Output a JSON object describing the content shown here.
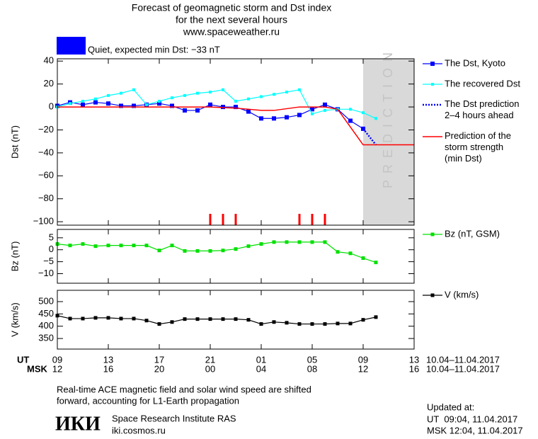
{
  "header": {
    "title_lines": [
      "Forecast of geomagnetic storm and Dst index",
      "for the next several hours",
      "www.spaceweather.ru"
    ],
    "status": "Quiet, expected min Dst: −33 nT",
    "status_color": "#0000ff"
  },
  "x_axis": {
    "xlim": [
      0,
      28
    ],
    "xticks": [
      {
        "value": 0,
        "label": "09"
      },
      {
        "value": 4,
        "label": "13"
      },
      {
        "value": 8,
        "label": "17"
      },
      {
        "value": 12,
        "label": "21"
      },
      {
        "value": 16,
        "label": "01"
      },
      {
        "value": 20,
        "label": "05"
      },
      {
        "value": 24,
        "label": "09"
      },
      {
        "value": 28,
        "label": "13"
      }
    ],
    "msk_ticks": [
      {
        "value": 0,
        "label": "12"
      },
      {
        "value": 4,
        "label": "16"
      },
      {
        "value": 8,
        "label": "20"
      },
      {
        "value": 12,
        "label": "00"
      },
      {
        "value": 16,
        "label": "04"
      },
      {
        "value": 20,
        "label": "08"
      },
      {
        "value": 24,
        "label": "12"
      },
      {
        "value": 28,
        "label": "16"
      }
    ],
    "ut_label": "UT",
    "msk_label": "MSK",
    "date_range": "10.04–11.04.2017"
  },
  "chart_data": [
    {
      "type": "line",
      "ylabel": "Dst (nT)",
      "ylim": [
        -103,
        42
      ],
      "yticks": [
        40,
        20,
        0,
        {
          "value": -20,
          "label": "−20"
        },
        {
          "value": -40,
          "label": "−40"
        },
        {
          "value": -60,
          "label": "−60"
        },
        {
          "value": -80,
          "label": "−80"
        },
        {
          "value": -100,
          "label": "−100"
        }
      ],
      "prediction_start": 24,
      "prediction_label": "PREDICTION",
      "prediction_color": "#d9d9d9",
      "markers_x": [
        12,
        13,
        14,
        19,
        20,
        21
      ],
      "markers_color": "#ff0000",
      "series": [
        {
          "name": "The Dst, Kyoto",
          "color": "#0000ff",
          "marker": "square",
          "marker_size": 6,
          "x": [
            0,
            1,
            2,
            3,
            4,
            5,
            6,
            7,
            8,
            9,
            10,
            11,
            12,
            13,
            14,
            15,
            16,
            17,
            18,
            19,
            20,
            21,
            22,
            23,
            24
          ],
          "values": [
            1,
            4,
            2,
            4,
            3,
            1,
            1,
            2,
            3,
            1,
            -3,
            -3,
            2,
            0,
            0,
            -4,
            -10,
            -10,
            -9,
            -7,
            -2,
            2,
            -2,
            -12,
            -19
          ]
        },
        {
          "name": "The recovered Dst",
          "color": "#00ffff",
          "marker": "square",
          "marker_size": 4,
          "x": [
            0,
            1,
            2,
            3,
            4,
            5,
            6,
            7,
            8,
            9,
            10,
            11,
            12,
            13,
            14,
            15,
            16,
            17,
            18,
            19,
            20,
            21,
            22,
            23,
            24,
            25
          ],
          "values": [
            0,
            3,
            5,
            7,
            10,
            12,
            15,
            2,
            5,
            8,
            10,
            12,
            13,
            15,
            5,
            7,
            9,
            11,
            13,
            15,
            -6,
            -3,
            -2,
            -2,
            -5,
            -10
          ]
        },
        {
          "name": "The Dst prediction\n2–4 hours ahead",
          "color": "#0000ff",
          "dash": "2,2",
          "width": 2.5,
          "x": [
            24,
            25
          ],
          "values": [
            -19,
            -33
          ]
        },
        {
          "name": "Prediction of the\nstorm strength\n(min Dst)",
          "color": "#ff0000",
          "width": 1.5,
          "x": [
            0,
            12,
            14,
            16,
            17,
            19,
            21,
            22,
            24,
            28
          ],
          "values": [
            0,
            0,
            -1,
            -3,
            -3,
            0,
            0,
            -2,
            -33,
            -33
          ]
        }
      ]
    },
    {
      "type": "line",
      "ylabel": "Bz (nT)",
      "ylim": [
        -14,
        8.5
      ],
      "yticks": [
        5,
        0,
        {
          "value": -5,
          "label": "−5"
        },
        {
          "value": -10,
          "label": "−10"
        }
      ],
      "series": [
        {
          "name": "Bz (nT, GSM)",
          "color": "#00e000",
          "marker": "square",
          "marker_size": 5,
          "x": [
            0,
            1,
            2,
            3,
            4,
            5,
            6,
            7,
            8,
            9,
            10,
            11,
            12,
            13,
            14,
            15,
            16,
            17,
            18,
            19,
            20,
            21,
            22,
            23,
            24,
            25
          ],
          "values": [
            2.4,
            1.8,
            2.4,
            1.5,
            1.8,
            1.8,
            1.8,
            1.8,
            -0.3,
            1.8,
            -0.5,
            -0.5,
            -0.5,
            -0.3,
            0.3,
            1.5,
            2.4,
            3.2,
            3.2,
            3.2,
            3.2,
            3.2,
            -0.9,
            -1.5,
            -3.5,
            -5.3
          ]
        }
      ]
    },
    {
      "type": "line",
      "ylabel": "V (km/s)",
      "ylim": [
        307,
        546
      ],
      "yticks": [
        500,
        450,
        400,
        350
      ],
      "series": [
        {
          "name": "V (km/s)",
          "color": "#000000",
          "marker": "square",
          "marker_size": 5,
          "x": [
            0,
            1,
            2,
            3,
            4,
            5,
            6,
            7,
            8,
            9,
            10,
            11,
            12,
            13,
            14,
            15,
            16,
            17,
            18,
            19,
            20,
            21,
            22,
            23,
            24,
            25
          ],
          "values": [
            443,
            431,
            431,
            434,
            434,
            431,
            431,
            423,
            409,
            417,
            429,
            429,
            429,
            429,
            429,
            426,
            409,
            417,
            414,
            409,
            409,
            409,
            411,
            411,
            426,
            437
          ]
        }
      ]
    }
  ],
  "footer": {
    "note_lines": [
      "Real-time ACE magnetic field and solar wind speed are shifted",
      "forward, accounting for L1-Earth propagation"
    ],
    "logo": "ИКИ",
    "institute": "Space Research Institute RAS",
    "site": "iki.cosmos.ru",
    "updated_label": "Updated at:",
    "updated_ut": "UT  09:04, 11.04.2017",
    "updated_msk": "MSK 12:04, 11.04.2017"
  }
}
